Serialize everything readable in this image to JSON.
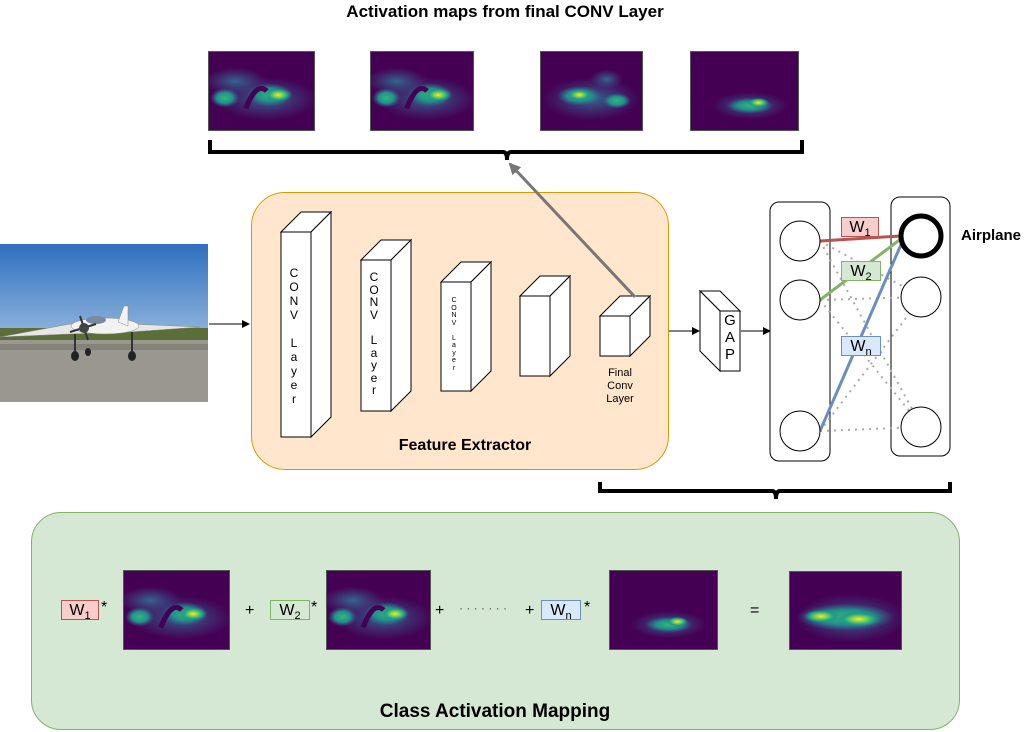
{
  "title_top": "Activation maps from final CONV Layer",
  "feature_extractor": {
    "label": "Feature Extractor",
    "conv1": "C\nO\nN\nV\n\nL\na\ny\ne\nr",
    "conv2": "C\nO\nN\nV\n\nL\na\ny\ne\nr",
    "conv3": "C\nO\nN\nV\n\nL\na\ny\ne\nr",
    "final_label": "Final\nConv\nLayer"
  },
  "gap_label": "G\nA\nP",
  "output_class": "Airplane",
  "weights": {
    "w1_main": "W",
    "w1_sub": "1",
    "w2_main": "W",
    "w2_sub": "2",
    "wn_main": "W",
    "wn_sub": "n"
  },
  "cam": {
    "label": "Class Activation Mapping",
    "times": "*",
    "plus": "+",
    "equals": "=",
    "dots": "· · · · · · ·"
  },
  "colors": {
    "feature_fill": "#ffe6cc",
    "feature_border": "#d79b00",
    "cam_fill": "#d5e8d4",
    "cam_border": "#82b366",
    "w1": "#b85450",
    "w2": "#82b366",
    "wn": "#6c8ebf",
    "heat_background": "#440154"
  },
  "icons": {
    "input": "airplane-photo",
    "maps": "activation-heatmap"
  }
}
